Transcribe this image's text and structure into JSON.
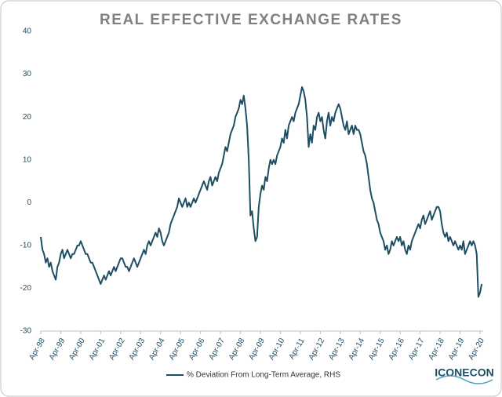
{
  "chart_data": {
    "type": "line",
    "title": "REAL EFFECTIVE EXCHANGE RATES",
    "logo": "ICONECON",
    "legend": "bottom",
    "grid": false,
    "ylim": [
      -30,
      40
    ],
    "yticks": [
      -30,
      -20,
      -10,
      0,
      10,
      20,
      30,
      40
    ],
    "categories": [
      "Apr-98",
      null,
      null,
      null,
      null,
      null,
      null,
      null,
      null,
      null,
      null,
      null,
      "Apr-99",
      null,
      null,
      null,
      null,
      null,
      null,
      null,
      null,
      null,
      null,
      null,
      "Apr-00",
      null,
      null,
      null,
      null,
      null,
      null,
      null,
      null,
      null,
      null,
      null,
      "Apr-01",
      null,
      null,
      null,
      null,
      null,
      null,
      null,
      null,
      null,
      null,
      null,
      "Apr-02",
      null,
      null,
      null,
      null,
      null,
      null,
      null,
      null,
      null,
      null,
      null,
      "Apr-03",
      null,
      null,
      null,
      null,
      null,
      null,
      null,
      null,
      null,
      null,
      null,
      "Apr-04",
      null,
      null,
      null,
      null,
      null,
      null,
      null,
      null,
      null,
      null,
      null,
      "Apr-05",
      null,
      null,
      null,
      null,
      null,
      null,
      null,
      null,
      null,
      null,
      null,
      "Apr-06",
      null,
      null,
      null,
      null,
      null,
      null,
      null,
      null,
      null,
      null,
      null,
      "Apr-07",
      null,
      null,
      null,
      null,
      null,
      null,
      null,
      null,
      null,
      null,
      null,
      "Apr-08",
      null,
      null,
      null,
      null,
      null,
      null,
      null,
      null,
      null,
      null,
      null,
      "Apr-09",
      null,
      null,
      null,
      null,
      null,
      null,
      null,
      null,
      null,
      null,
      null,
      "Apr-10",
      null,
      null,
      null,
      null,
      null,
      null,
      null,
      null,
      null,
      null,
      null,
      "Apr-11",
      null,
      null,
      null,
      null,
      null,
      null,
      null,
      null,
      null,
      null,
      null,
      "Apr-12",
      null,
      null,
      null,
      null,
      null,
      null,
      null,
      null,
      null,
      null,
      null,
      "Apr-13",
      null,
      null,
      null,
      null,
      null,
      null,
      null,
      null,
      null,
      null,
      null,
      "Apr-14",
      null,
      null,
      null,
      null,
      null,
      null,
      null,
      null,
      null,
      null,
      null,
      "Apr-15",
      null,
      null,
      null,
      null,
      null,
      null,
      null,
      null,
      null,
      null,
      null,
      "Apr-16",
      null,
      null,
      null,
      null,
      null,
      null,
      null,
      null,
      null,
      null,
      null,
      "Apr-17",
      null,
      null,
      null,
      null,
      null,
      null,
      null,
      null,
      null,
      null,
      null,
      "Apr-18",
      null,
      null,
      null,
      null,
      null,
      null,
      null,
      null,
      null,
      null,
      null,
      "Apr-19",
      null,
      null,
      null,
      null,
      null,
      null,
      null,
      null,
      null,
      null,
      null,
      "Apr-20",
      null
    ],
    "series": [
      {
        "name": "% Deviation From Long-Term Average, RHS",
        "color": "#1d4e63",
        "values": [
          -8,
          -11,
          -12,
          -14,
          -13,
          -15,
          -14,
          -16,
          -17,
          -18,
          -15,
          -14,
          -12,
          -11,
          -13,
          -12,
          -11,
          -12,
          -13,
          -12,
          -12,
          -11,
          -10,
          -10,
          -9,
          -10,
          -11,
          -12,
          -12,
          -13,
          -14,
          -14,
          -15,
          -16,
          -17,
          -18,
          -19,
          -18,
          -17,
          -18,
          -17,
          -16,
          -17,
          -16,
          -15,
          -16,
          -15,
          -14,
          -13,
          -13,
          -14,
          -15,
          -15,
          -16,
          -15,
          -14,
          -13,
          -14,
          -15,
          -14,
          -13,
          -12,
          -11,
          -12,
          -10,
          -9,
          -10,
          -9,
          -8,
          -7,
          -8,
          -6,
          -7,
          -9,
          -10,
          -9,
          -8,
          -7,
          -5,
          -4,
          -3,
          -2,
          -1,
          1,
          0,
          -1,
          0,
          1,
          -1,
          0,
          -1,
          0,
          1,
          0,
          1,
          2,
          3,
          4,
          5,
          4,
          3,
          5,
          6,
          4,
          5,
          6,
          5,
          7,
          8,
          9,
          11,
          13,
          12,
          14,
          16,
          17,
          18,
          20,
          21,
          22,
          24,
          23,
          25,
          22,
          18,
          10,
          -3,
          -2,
          -6,
          -9,
          -8,
          -1,
          2,
          4,
          3,
          6,
          5,
          8,
          10,
          9,
          10,
          9,
          11,
          12,
          13,
          15,
          14,
          17,
          15,
          18,
          19,
          20,
          19,
          21,
          22,
          23,
          25,
          27,
          26,
          24,
          20,
          13,
          16,
          14,
          18,
          17,
          20,
          21,
          19,
          20,
          17,
          15,
          19,
          21,
          18,
          20,
          19,
          21,
          22,
          23,
          22,
          20,
          18,
          17,
          19,
          16,
          17,
          18,
          16,
          18,
          17,
          17,
          16,
          14,
          12,
          11,
          9,
          6,
          3,
          1,
          0,
          -2,
          -4,
          -5,
          -7,
          -8,
          -9,
          -11,
          -10,
          -12,
          -11,
          -9,
          -10,
          -9,
          -8,
          -9,
          -8,
          -10,
          -9,
          -11,
          -12,
          -10,
          -11,
          -9,
          -8,
          -7,
          -6,
          -5,
          -6,
          -4,
          -3,
          -5,
          -4,
          -3,
          -2,
          -4,
          -3,
          -2,
          -1,
          -1,
          -2,
          -5,
          -7,
          -8,
          -7,
          -9,
          -8,
          -9,
          -10,
          -9,
          -10,
          -11,
          -10,
          -11,
          -9,
          -12,
          -11,
          -10,
          -9,
          -10,
          -9,
          -10,
          -12,
          -22,
          -21,
          -19
        ]
      }
    ]
  }
}
